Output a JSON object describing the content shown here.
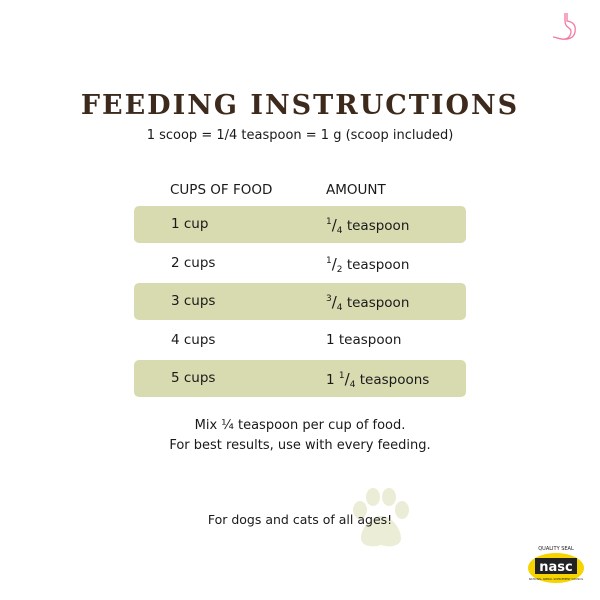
{
  "title": "FEEDING INSTRUCTIONS",
  "subtitle": "1 scoop = 1/4 teaspoon = 1 g (scoop included)",
  "table": {
    "headers": [
      "CUPS OF FOOD",
      "AMOUNT"
    ],
    "rows": [
      {
        "cups": "1 cup",
        "whole": "",
        "num": "1",
        "den": "4",
        "unit": "teaspoon"
      },
      {
        "cups": "2 cups",
        "whole": "",
        "num": "1",
        "den": "2",
        "unit": "teaspoon"
      },
      {
        "cups": "3 cups",
        "whole": "",
        "num": "3",
        "den": "4",
        "unit": "teaspoon"
      },
      {
        "cups": "4 cups",
        "whole": "1",
        "num": "",
        "den": "",
        "unit": "teaspoon"
      },
      {
        "cups": "5 cups",
        "whole": "1",
        "num": "1",
        "den": "4",
        "unit": "teaspoons"
      }
    ]
  },
  "instructions": [
    "Mix ¼ teaspoon per cup of food.",
    "For best results, use with every feeding."
  ],
  "footer": "For dogs and cats of all ages!",
  "badge": {
    "top": "QUALITY SEAL",
    "name": "nasc",
    "bottom": "NATIONAL ANIMAL SUPPLEMENT COUNCIL"
  },
  "icons": {
    "top_right": "stomach-icon",
    "paw": "paw-print-icon"
  },
  "colors": {
    "row_shade": "#d8dab0",
    "title": "#3d2a1c",
    "stomach": "#f07aa0",
    "badge": "#f5d400"
  }
}
